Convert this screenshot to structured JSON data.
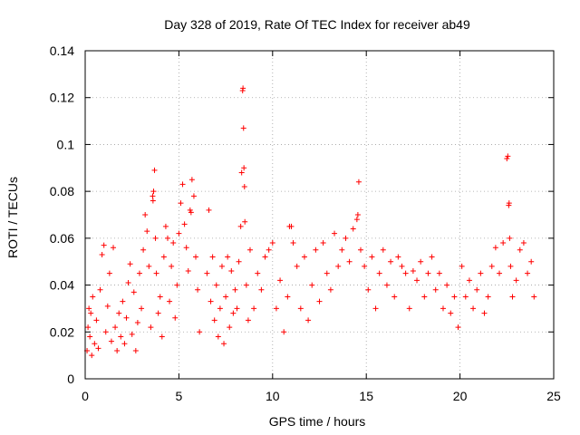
{
  "chart_data": {
    "type": "scatter",
    "title": "Day 328 of 2019, Rate Of TEC Index for receiver ab49",
    "xlabel": "GPS time / hours",
    "ylabel": "ROTI / TECUs",
    "xlim": [
      0,
      25
    ],
    "ylim": [
      0,
      0.14
    ],
    "xticks": [
      0,
      5,
      10,
      15,
      20,
      25
    ],
    "xtick_labels": [
      "0",
      "5",
      "10",
      "15",
      "20",
      "25"
    ],
    "yticks": [
      0,
      0.02,
      0.04,
      0.06,
      0.08,
      0.1,
      0.12,
      0.14
    ],
    "ytick_labels": [
      "0",
      "0.02",
      "0.04",
      "0.06",
      "0.08",
      "0.1",
      "0.12",
      "0.14"
    ],
    "grid": true,
    "legend": "none",
    "marker": "plus",
    "color": "#ff0000",
    "series": [
      {
        "points": [
          [
            0.1,
            0.012
          ],
          [
            0.15,
            0.022
          ],
          [
            0.2,
            0.03
          ],
          [
            0.25,
            0.018
          ],
          [
            0.3,
            0.028
          ],
          [
            0.35,
            0.01
          ],
          [
            0.4,
            0.035
          ],
          [
            0.5,
            0.015
          ],
          [
            0.6,
            0.025
          ],
          [
            0.7,
            0.013
          ],
          [
            0.8,
            0.038
          ],
          [
            0.9,
            0.053
          ],
          [
            1.0,
            0.057
          ],
          [
            1.1,
            0.02
          ],
          [
            1.2,
            0.031
          ],
          [
            1.3,
            0.045
          ],
          [
            1.4,
            0.016
          ],
          [
            1.5,
            0.056
          ],
          [
            1.6,
            0.022
          ],
          [
            1.7,
            0.012
          ],
          [
            1.8,
            0.028
          ],
          [
            1.9,
            0.018
          ],
          [
            2.0,
            0.033
          ],
          [
            2.1,
            0.015
          ],
          [
            2.2,
            0.026
          ],
          [
            2.3,
            0.041
          ],
          [
            2.4,
            0.049
          ],
          [
            2.5,
            0.019
          ],
          [
            2.6,
            0.037
          ],
          [
            2.7,
            0.012
          ],
          [
            2.8,
            0.024
          ],
          [
            2.9,
            0.045
          ],
          [
            3.0,
            0.03
          ],
          [
            3.1,
            0.055
          ],
          [
            3.2,
            0.07
          ],
          [
            3.3,
            0.063
          ],
          [
            3.4,
            0.048
          ],
          [
            3.5,
            0.022
          ],
          [
            3.6,
            0.078
          ],
          [
            3.62,
            0.076
          ],
          [
            3.65,
            0.08
          ],
          [
            3.7,
            0.089
          ],
          [
            3.75,
            0.06
          ],
          [
            3.8,
            0.045
          ],
          [
            3.9,
            0.028
          ],
          [
            4.0,
            0.035
          ],
          [
            4.1,
            0.018
          ],
          [
            4.2,
            0.052
          ],
          [
            4.3,
            0.065
          ],
          [
            4.4,
            0.06
          ],
          [
            4.5,
            0.033
          ],
          [
            4.6,
            0.048
          ],
          [
            4.7,
            0.058
          ],
          [
            4.8,
            0.026
          ],
          [
            4.9,
            0.04
          ],
          [
            5.0,
            0.062
          ],
          [
            5.1,
            0.075
          ],
          [
            5.2,
            0.083
          ],
          [
            5.3,
            0.066
          ],
          [
            5.4,
            0.056
          ],
          [
            5.5,
            0.046
          ],
          [
            5.6,
            0.072
          ],
          [
            5.65,
            0.071
          ],
          [
            5.7,
            0.085
          ],
          [
            5.8,
            0.078
          ],
          [
            5.9,
            0.052
          ],
          [
            6.0,
            0.038
          ],
          [
            6.1,
            0.02
          ],
          [
            6.5,
            0.045
          ],
          [
            6.6,
            0.072
          ],
          [
            6.7,
            0.033
          ],
          [
            6.8,
            0.052
          ],
          [
            6.9,
            0.025
          ],
          [
            7.0,
            0.04
          ],
          [
            7.1,
            0.018
          ],
          [
            7.2,
            0.03
          ],
          [
            7.3,
            0.048
          ],
          [
            7.4,
            0.015
          ],
          [
            7.5,
            0.035
          ],
          [
            7.6,
            0.052
          ],
          [
            7.7,
            0.022
          ],
          [
            7.8,
            0.046
          ],
          [
            7.9,
            0.028
          ],
          [
            8.0,
            0.038
          ],
          [
            8.1,
            0.03
          ],
          [
            8.2,
            0.05
          ],
          [
            8.3,
            0.065
          ],
          [
            8.35,
            0.088
          ],
          [
            8.4,
            0.123
          ],
          [
            8.42,
            0.124
          ],
          [
            8.45,
            0.107
          ],
          [
            8.47,
            0.09
          ],
          [
            8.5,
            0.082
          ],
          [
            8.52,
            0.067
          ],
          [
            8.6,
            0.04
          ],
          [
            8.7,
            0.025
          ],
          [
            8.8,
            0.055
          ],
          [
            9.0,
            0.03
          ],
          [
            9.2,
            0.045
          ],
          [
            9.4,
            0.038
          ],
          [
            9.6,
            0.052
          ],
          [
            9.8,
            0.055
          ],
          [
            10.0,
            0.058
          ],
          [
            10.2,
            0.03
          ],
          [
            10.4,
            0.042
          ],
          [
            10.6,
            0.02
          ],
          [
            10.8,
            0.035
          ],
          [
            10.9,
            0.065
          ],
          [
            11.0,
            0.065
          ],
          [
            11.1,
            0.058
          ],
          [
            11.3,
            0.048
          ],
          [
            11.5,
            0.03
          ],
          [
            11.7,
            0.052
          ],
          [
            11.9,
            0.025
          ],
          [
            12.1,
            0.04
          ],
          [
            12.3,
            0.055
          ],
          [
            12.5,
            0.033
          ],
          [
            12.7,
            0.058
          ],
          [
            12.9,
            0.045
          ],
          [
            13.1,
            0.038
          ],
          [
            13.3,
            0.062
          ],
          [
            13.5,
            0.048
          ],
          [
            13.7,
            0.055
          ],
          [
            13.9,
            0.06
          ],
          [
            14.1,
            0.05
          ],
          [
            14.3,
            0.064
          ],
          [
            14.5,
            0.068
          ],
          [
            14.55,
            0.07
          ],
          [
            14.6,
            0.084
          ],
          [
            14.7,
            0.055
          ],
          [
            14.9,
            0.048
          ],
          [
            15.1,
            0.038
          ],
          [
            15.3,
            0.052
          ],
          [
            15.5,
            0.03
          ],
          [
            15.7,
            0.045
          ],
          [
            15.9,
            0.055
          ],
          [
            16.1,
            0.04
          ],
          [
            16.3,
            0.05
          ],
          [
            16.5,
            0.035
          ],
          [
            16.7,
            0.052
          ],
          [
            16.9,
            0.048
          ],
          [
            17.1,
            0.045
          ],
          [
            17.3,
            0.03
          ],
          [
            17.5,
            0.046
          ],
          [
            17.7,
            0.042
          ],
          [
            17.9,
            0.05
          ],
          [
            18.1,
            0.035
          ],
          [
            18.3,
            0.045
          ],
          [
            18.5,
            0.052
          ],
          [
            18.7,
            0.038
          ],
          [
            18.9,
            0.045
          ],
          [
            19.1,
            0.03
          ],
          [
            19.3,
            0.04
          ],
          [
            19.5,
            0.028
          ],
          [
            19.7,
            0.035
          ],
          [
            19.9,
            0.022
          ],
          [
            20.1,
            0.048
          ],
          [
            20.3,
            0.035
          ],
          [
            20.5,
            0.042
          ],
          [
            20.7,
            0.03
          ],
          [
            20.9,
            0.038
          ],
          [
            21.1,
            0.045
          ],
          [
            21.3,
            0.028
          ],
          [
            21.5,
            0.035
          ],
          [
            21.7,
            0.048
          ],
          [
            21.9,
            0.056
          ],
          [
            22.1,
            0.045
          ],
          [
            22.3,
            0.058
          ],
          [
            22.5,
            0.094
          ],
          [
            22.55,
            0.095
          ],
          [
            22.6,
            0.074
          ],
          [
            22.62,
            0.075
          ],
          [
            22.65,
            0.06
          ],
          [
            22.7,
            0.048
          ],
          [
            22.8,
            0.035
          ],
          [
            23.0,
            0.042
          ],
          [
            23.2,
            0.055
          ],
          [
            23.4,
            0.058
          ],
          [
            23.6,
            0.045
          ],
          [
            23.8,
            0.05
          ],
          [
            23.95,
            0.035
          ]
        ]
      }
    ]
  }
}
